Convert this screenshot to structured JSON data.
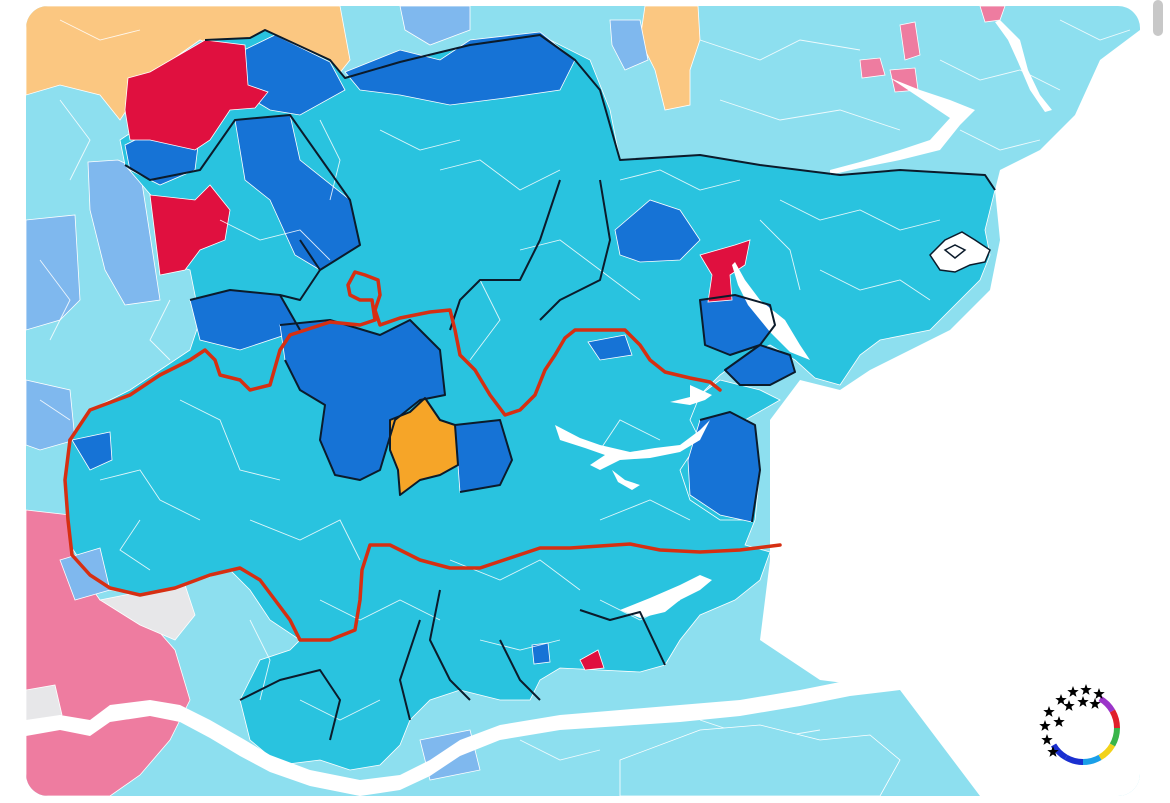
{
  "map": {
    "colors": {
      "sea": "#ffffff",
      "reform_light": "#29c3df",
      "reform_pale": "#8ddfef",
      "conservative": "#1673d6",
      "conservative_light": "#7fb8ee",
      "labour": "#e0103f",
      "labour_pale": "#ee7ca0",
      "libdem": "#f6a528",
      "libdem_pale": "#fbc781",
      "grey": "#e7e7e9",
      "district_border": "#0b1b2b",
      "constituency_border": "#d62f12"
    },
    "icons": [
      "scrollbar-thumb",
      "logo-stars-ring-icon"
    ]
  },
  "logo": {
    "ring_colors": [
      "#1a2fd0",
      "#1a2fd0",
      "#1a9fe8",
      "#f2d21a",
      "#39b54a",
      "#e0202a",
      "#9b35c9"
    ],
    "star_color": "#000000"
  }
}
